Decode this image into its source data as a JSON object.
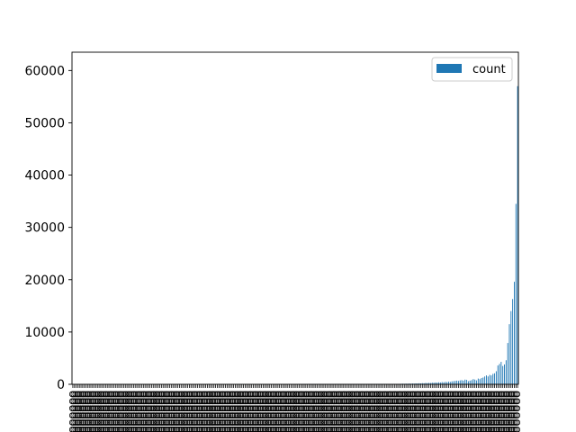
{
  "chart_data": {
    "type": "bar",
    "title": "",
    "xlabel": "",
    "ylabel": "",
    "ylim": [
      0,
      63500
    ],
    "yticks": [
      0,
      10000,
      20000,
      30000,
      40000,
      50000,
      60000
    ],
    "ytick_labels": [
      "0",
      "10000",
      "20000",
      "30000",
      "40000",
      "50000",
      "60000"
    ],
    "xtick_label_style": "rotated 90 degrees, overlapping and unreadable",
    "legend_position": "top-right",
    "grid": false,
    "bar_color": "#1f77b4",
    "series": [
      {
        "name": "count",
        "values": [
          10,
          10,
          10,
          10,
          10,
          10,
          10,
          10,
          10,
          10,
          10,
          10,
          10,
          10,
          10,
          10,
          10,
          10,
          10,
          10,
          10,
          10,
          10,
          10,
          10,
          10,
          10,
          10,
          10,
          10,
          10,
          10,
          10,
          10,
          10,
          10,
          10,
          10,
          10,
          10,
          10,
          10,
          10,
          10,
          10,
          10,
          10,
          10,
          10,
          10,
          10,
          10,
          10,
          10,
          10,
          10,
          10,
          10,
          10,
          10,
          10,
          10,
          10,
          10,
          10,
          10,
          10,
          10,
          10,
          10,
          10,
          10,
          10,
          10,
          10,
          10,
          10,
          10,
          10,
          10,
          10,
          10,
          10,
          10,
          10,
          10,
          10,
          10,
          10,
          10,
          10,
          10,
          10,
          10,
          10,
          10,
          10,
          10,
          10,
          10,
          10,
          10,
          10,
          10,
          10,
          10,
          10,
          10,
          10,
          10,
          10,
          10,
          10,
          10,
          10,
          10,
          10,
          10,
          10,
          10,
          10,
          10,
          10,
          10,
          10,
          10,
          10,
          10,
          10,
          10,
          10,
          10,
          10,
          10,
          10,
          10,
          10,
          10,
          10,
          10,
          30,
          30,
          30,
          30,
          30,
          30,
          30,
          30,
          30,
          30,
          30,
          30,
          30,
          30,
          30,
          30,
          30,
          30,
          30,
          30,
          60,
          60,
          60,
          60,
          60,
          60,
          60,
          60,
          60,
          60,
          60,
          60,
          60,
          60,
          60,
          60,
          60,
          60,
          60,
          60,
          80,
          80,
          80,
          80,
          80,
          80,
          80,
          80,
          80,
          80,
          80,
          80,
          80,
          80,
          80,
          80,
          80,
          80,
          80,
          80,
          100,
          120,
          100,
          130,
          110,
          150,
          120,
          160,
          140,
          180,
          160,
          200,
          180,
          220,
          200,
          260,
          230,
          280,
          250,
          320,
          300,
          350,
          320,
          380,
          350,
          420,
          380,
          460,
          420,
          500,
          460,
          560,
          600,
          650,
          700,
          650,
          750,
          800,
          700,
          900,
          850,
          600,
          700,
          800,
          1000,
          900,
          750,
          1100,
          1000,
          1200,
          1300,
          1500,
          1700,
          1500,
          1800,
          1700,
          2000,
          2100,
          2500,
          3600,
          3900,
          4300,
          3500,
          3800,
          4600,
          7900,
          11500,
          14000,
          16300,
          19600,
          34500,
          57000
        ]
      }
    ]
  }
}
